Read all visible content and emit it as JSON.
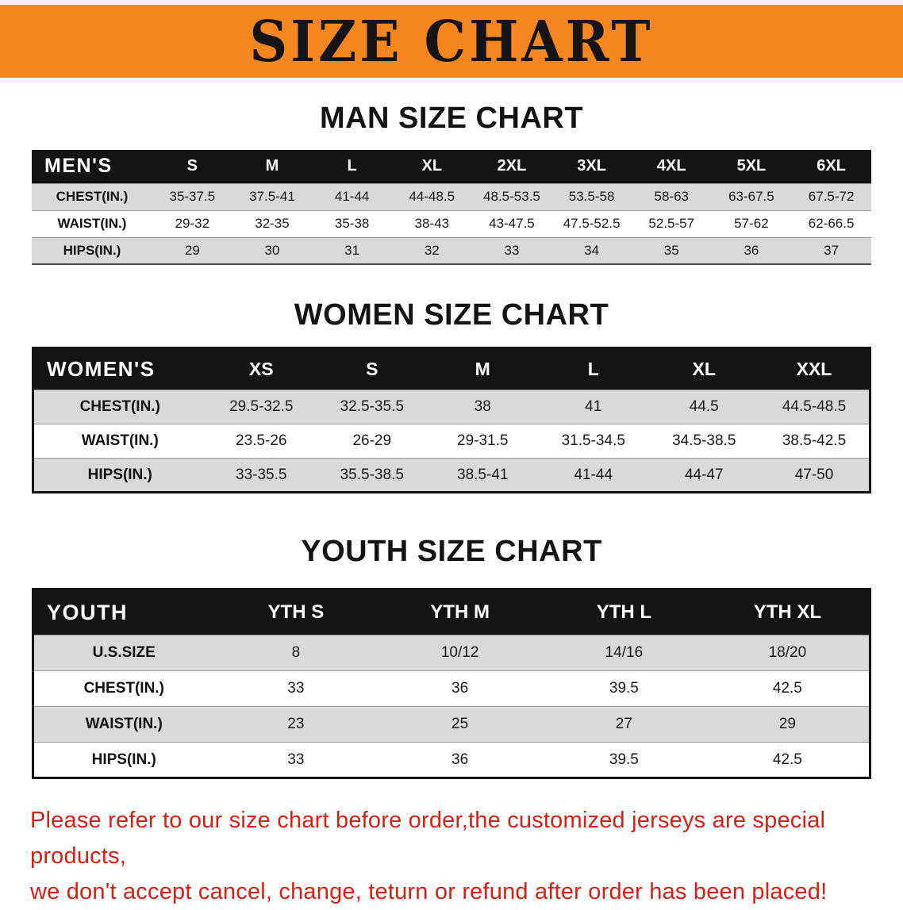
{
  "banner": {
    "title": "SIZE CHART"
  },
  "colors": {
    "banner_bg": "#f6861f",
    "header_bg": "#141414",
    "stripe": "#d9d9d9",
    "footer_red": "#cf2317"
  },
  "sections": [
    {
      "heading": "MAN SIZE CHART",
      "table": {
        "header": [
          "MEN'S",
          "S",
          "M",
          "L",
          "XL",
          "2XL",
          "3XL",
          "4XL",
          "5XL",
          "6XL"
        ],
        "rows": [
          [
            "CHEST(IN.)",
            "35-37.5",
            "37.5-41",
            "41-44",
            "44-48.5",
            "48.5-53.5",
            "53.5-58",
            "58-63",
            "63-67.5",
            "67.5-72"
          ],
          [
            "WAIST(IN.)",
            "29-32",
            "32-35",
            "35-38",
            "38-43",
            "43-47.5",
            "47.5-52.5",
            "52.5-57",
            "57-62",
            "62-66.5"
          ],
          [
            "HIPS(IN.)",
            "29",
            "30",
            "31",
            "32",
            "33",
            "34",
            "35",
            "36",
            "37"
          ]
        ]
      }
    },
    {
      "heading": "WOMEN SIZE CHART",
      "table": {
        "header": [
          "WOMEN'S",
          "XS",
          "S",
          "M",
          "L",
          "XL",
          "XXL"
        ],
        "rows": [
          [
            "CHEST(IN.)",
            "29.5-32.5",
            "32.5-35.5",
            "38",
            "41",
            "44.5",
            "44.5-48.5"
          ],
          [
            "WAIST(IN.)",
            "23.5-26",
            "26-29",
            "29-31.5",
            "31.5-34.5",
            "34.5-38.5",
            "38.5-42.5"
          ],
          [
            "HIPS(IN.)",
            "33-35.5",
            "35.5-38.5",
            "38.5-41",
            "41-44",
            "44-47",
            "47-50"
          ]
        ]
      }
    },
    {
      "heading": "YOUTH SIZE CHART",
      "table": {
        "header": [
          "YOUTH",
          "YTH S",
          "YTH M",
          "YTH L",
          "YTH XL"
        ],
        "rows": [
          [
            "U.S.SIZE",
            "8",
            "10/12",
            "14/16",
            "18/20"
          ],
          [
            "CHEST(IN.)",
            "33",
            "36",
            "39.5",
            "42.5"
          ],
          [
            "WAIST(IN.)",
            "23",
            "25",
            "27",
            "29"
          ],
          [
            "HIPS(IN.)",
            "33",
            "36",
            "39.5",
            "42.5"
          ]
        ]
      }
    }
  ],
  "footer": {
    "line1": "Please refer to our size chart before order,the customized jerseys are special products,",
    "line2": "we don't accept cancel, change, teturn or refund after order has been placed!"
  }
}
